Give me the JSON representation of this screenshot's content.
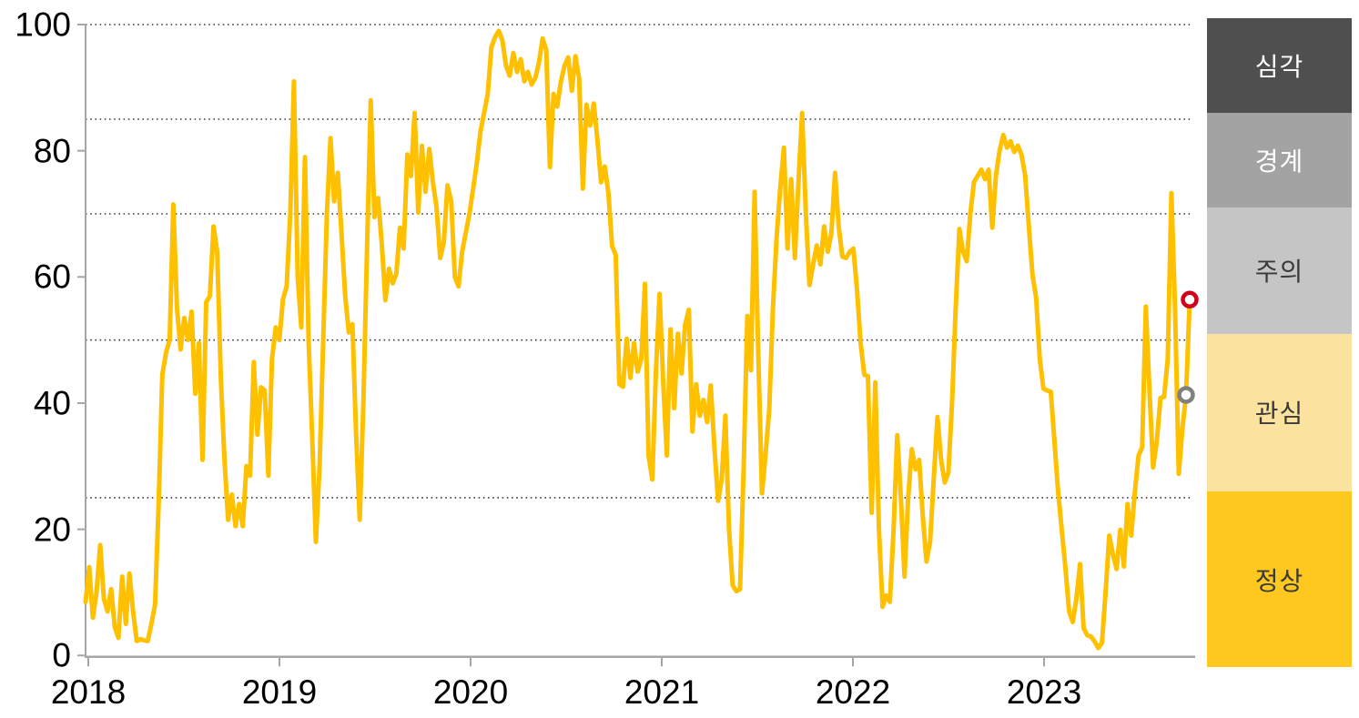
{
  "chart_data": {
    "type": "line",
    "title": "",
    "xlabel": "",
    "ylabel": "",
    "ylim": [
      0,
      100
    ],
    "y_tick_values": [
      0,
      20,
      40,
      60,
      80,
      100
    ],
    "y_tick_labels": [
      "0",
      "20",
      "40",
      "60",
      "80",
      "100"
    ],
    "gridline_values": [
      25,
      50,
      70,
      85,
      100
    ],
    "gridline_style": "dotted",
    "x_tick_labels": [
      "2018",
      "2019",
      "2020",
      "2021",
      "2022",
      "2023"
    ],
    "x_unit": "weekly observations from 2018 to late 2023",
    "n_points": 303,
    "line_color": "#FFC000",
    "series": [
      {
        "name": "index",
        "values": [
          8.5,
          14,
          6,
          10,
          17.5,
          9,
          7,
          10.5,
          4.5,
          2.8,
          12.5,
          5,
          13,
          7,
          2.3,
          2.6,
          2.4,
          2.3,
          5,
          8,
          24,
          44.5,
          48,
          50,
          71.5,
          55,
          48.5,
          53.5,
          50,
          54.5,
          41.5,
          49.5,
          31,
          56,
          57,
          68,
          64,
          44,
          31,
          21.5,
          25.5,
          20.5,
          24,
          20.5,
          30,
          28.5,
          46.5,
          35,
          42.5,
          42,
          28.5,
          47,
          52,
          50,
          56.5,
          58.5,
          70,
          91,
          60,
          52,
          79,
          50,
          34.5,
          18,
          30,
          50,
          70,
          82,
          72,
          76.5,
          66.8,
          57,
          51.2,
          52.5,
          35,
          21.5,
          40.5,
          65,
          88,
          69.5,
          72.5,
          65.5,
          56.3,
          61.3,
          59,
          60.5,
          67.8,
          64.5,
          79.4,
          76,
          86,
          70.2,
          80.8,
          73.5,
          80.3,
          75,
          71,
          63,
          65.5,
          74.5,
          72,
          60,
          58.5,
          64,
          67,
          70,
          74,
          78,
          83,
          86,
          89,
          96.4,
          98,
          99,
          97.5,
          93.5,
          91.9,
          95.5,
          92.5,
          94.5,
          91,
          92.5,
          90.5,
          91.5,
          94,
          97.8,
          96,
          77.4,
          89,
          87,
          91,
          93.5,
          94.8,
          89.5,
          95,
          91.5,
          74,
          87.3,
          84,
          87.5,
          81.8,
          75,
          77.5,
          73.3,
          64.9,
          63.5,
          43,
          42.6,
          50.2,
          44,
          49.5,
          45,
          47,
          58.9,
          31.7,
          27.9,
          45,
          57.3,
          43.3,
          31.7,
          51.7,
          39.2,
          51,
          44.7,
          52.4,
          54.8,
          35.5,
          43,
          38,
          40.5,
          37,
          42.8,
          33,
          24.5,
          28,
          38,
          20,
          11.1,
          10.2,
          10.5,
          30,
          53.8,
          45.2,
          73.5,
          48,
          25.7,
          32,
          39,
          55,
          66,
          74,
          80.5,
          64.5,
          75.5,
          63,
          75,
          86,
          70,
          58.7,
          62,
          65,
          62,
          68,
          64,
          67,
          76.5,
          68,
          63.2,
          63,
          64,
          64.5,
          58,
          49.5,
          44.5,
          44.3,
          22.6,
          43.3,
          20,
          7.7,
          9.5,
          8.5,
          20,
          34.9,
          25,
          12.5,
          25,
          32.7,
          29.5,
          31,
          22,
          14.9,
          18,
          28,
          37.8,
          31,
          27.4,
          29,
          40,
          55,
          67.6,
          64,
          62.5,
          70,
          75,
          76,
          77,
          75.5,
          77,
          67.8,
          76,
          80,
          82.5,
          80.5,
          81.5,
          79.8,
          80.8,
          79.4,
          76,
          68,
          60.3,
          56.7,
          47,
          42.3,
          42,
          41.8,
          34,
          26,
          20,
          14,
          7,
          5.3,
          9,
          14.5,
          4.3,
          3.2,
          3.0,
          2.2,
          1.2,
          2.0,
          10,
          19,
          16,
          13.7,
          19.9,
          14.1,
          24,
          19,
          26,
          31.7,
          33,
          55.3,
          42,
          29.8,
          34,
          40.8,
          41,
          47,
          73.3,
          55,
          28.8,
          36,
          41.3,
          56.4
        ]
      }
    ],
    "markers": [
      {
        "name": "latest-value-marker",
        "shape": "ring",
        "color": "#D0021B",
        "value": 56.4,
        "at": "last"
      },
      {
        "name": "previous-value-marker",
        "shape": "ring",
        "color": "#808080",
        "value": 41.3,
        "at": "second_last"
      }
    ],
    "legend_position": "right",
    "axis_color": "#A6A6A6"
  },
  "legend": {
    "bands": [
      {
        "label": "심각",
        "range": [
          85,
          100
        ],
        "color": "#4F4F4F",
        "text_color": "#FFFFFF"
      },
      {
        "label": "경계",
        "range": [
          70,
          85
        ],
        "color": "#A3A3A3",
        "text_color": "#FFFFFF"
      },
      {
        "label": "주의",
        "range": [
          50,
          70
        ],
        "color": "#C5C5C5",
        "text_color": "#3A3A3A"
      },
      {
        "label": "관심",
        "range": [
          25,
          50
        ],
        "color": "#FBE29F",
        "text_color": "#3A3A3A"
      },
      {
        "label": "정상",
        "range": [
          0,
          25
        ],
        "color": "#FFC81E",
        "text_color": "#3A3A3A"
      }
    ]
  }
}
